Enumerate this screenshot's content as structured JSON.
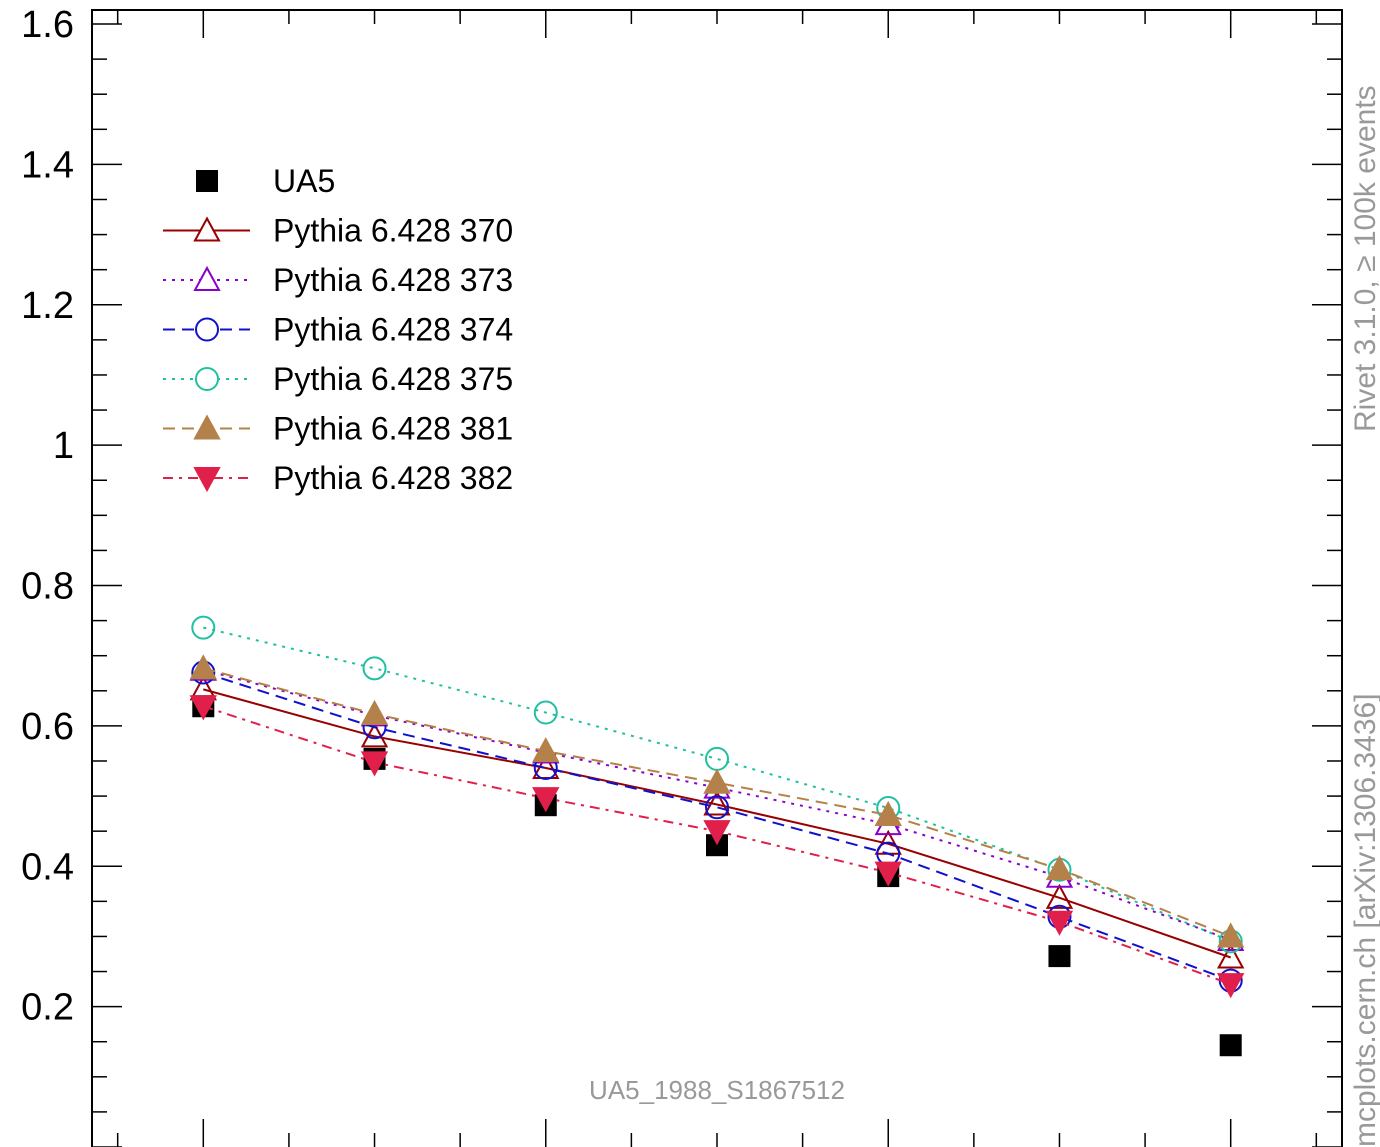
{
  "chart_data": {
    "type": "scatter",
    "title": "",
    "xlabel": "",
    "ylabel": "",
    "x": [
      1,
      2,
      3,
      4,
      5,
      6,
      7
    ],
    "xlim": [
      0.35,
      7.65
    ],
    "ylim": [
      0,
      1.62
    ],
    "y_ticks": [
      0.2,
      0.4,
      0.6,
      0.8,
      1,
      1.2,
      1.4,
      1.6
    ],
    "y_tick_labels": [
      "0.2",
      "0.4",
      "0.6",
      "0.8",
      "1",
      "1.2",
      "1.4",
      "1.6"
    ],
    "legend_position": "top-left",
    "analysis_label": "UA5_1988_S1867512",
    "side_labels": [
      "Rivet 3.1.0, ≥ 100k events",
      "mcplots.cern.ch [arXiv:1306.3436]"
    ],
    "series": [
      {
        "name": "UA5",
        "color": "#000000",
        "marker": "filled-square",
        "line": "none",
        "values": [
          0.628,
          0.553,
          0.487,
          0.43,
          0.386,
          0.272,
          0.145
        ]
      },
      {
        "name": "Pythia 6.428 370",
        "color": "#990000",
        "marker": "open-triangle-up",
        "line": "solid",
        "values": [
          0.652,
          0.585,
          0.54,
          0.488,
          0.432,
          0.355,
          0.27
        ]
      },
      {
        "name": "Pythia 6.428 373",
        "color": "#8b00cc",
        "marker": "open-triangle-up",
        "line": "dotted",
        "values": [
          0.68,
          0.615,
          0.562,
          0.512,
          0.46,
          0.385,
          0.295
        ]
      },
      {
        "name": "Pythia 6.428 374",
        "color": "#1111cc",
        "marker": "open-circle",
        "line": "dashed",
        "values": [
          0.676,
          0.598,
          0.54,
          0.484,
          0.418,
          0.328,
          0.237
        ]
      },
      {
        "name": "Pythia 6.428 375",
        "color": "#20c0a0",
        "marker": "open-circle",
        "line": "dotted",
        "values": [
          0.74,
          0.682,
          0.619,
          0.553,
          0.483,
          0.395,
          0.293
        ]
      },
      {
        "name": "Pythia 6.428 381",
        "color": "#b5814a",
        "marker": "filled-triangle-up",
        "line": "dashed",
        "values": [
          0.682,
          0.617,
          0.564,
          0.519,
          0.473,
          0.396,
          0.3
        ]
      },
      {
        "name": "Pythia 6.428 382",
        "color": "#e0204a",
        "marker": "filled-triangle-down",
        "line": "dashdot",
        "values": [
          0.628,
          0.548,
          0.497,
          0.45,
          0.391,
          0.321,
          0.232
        ]
      }
    ]
  }
}
